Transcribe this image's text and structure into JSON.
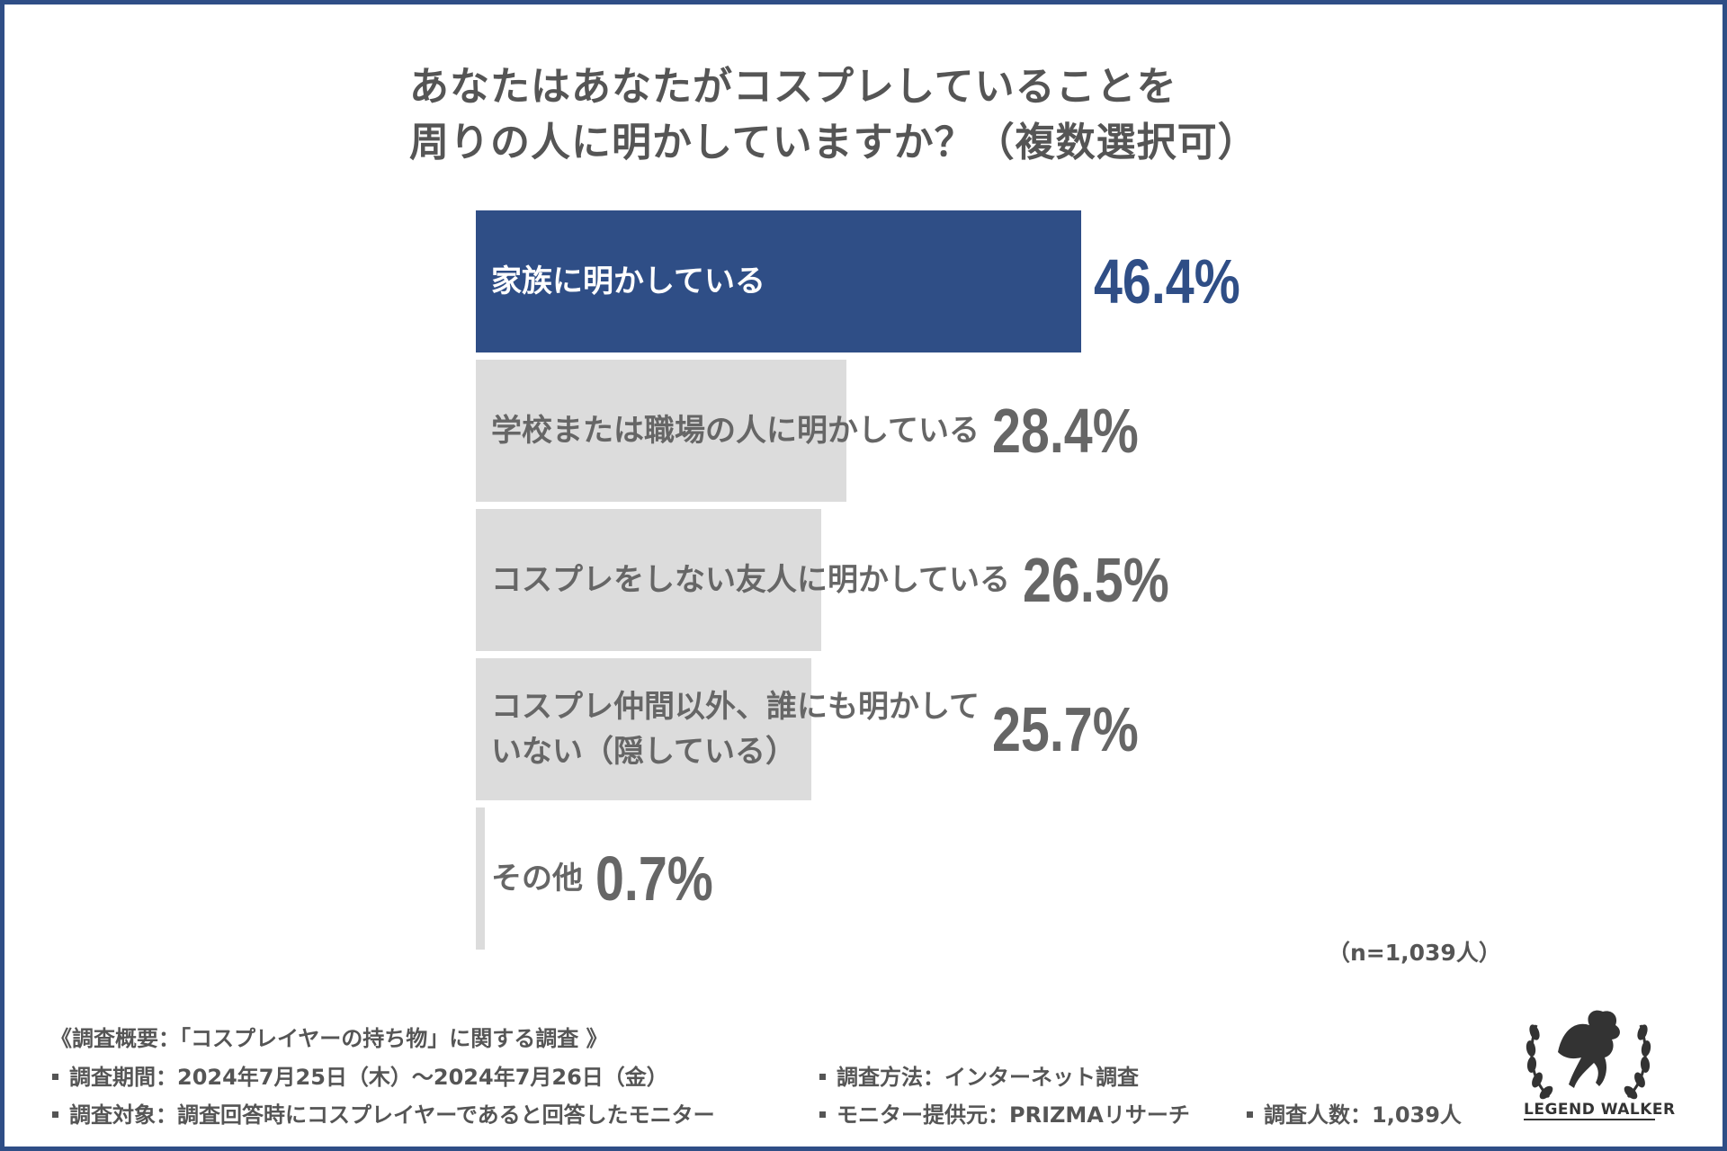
{
  "title": {
    "line1": "あなたはあなたがコスプレしていることを",
    "line2": "周りの人に明かしていますか？（複数選択可）"
  },
  "chart_data": {
    "type": "bar",
    "orientation": "horizontal",
    "title": "あなたはあなたがコスプレしていることを周りの人に明かしていますか？（複数選択可）",
    "categories": [
      "家族に明かしている",
      "学校または職場の人に明かしている",
      "コスプレをしない友人に明かしている",
      "コスプレ仲間以外、誰にも明かしていない（隠している）",
      "その他"
    ],
    "category_lines": [
      [
        "家族に明かしている"
      ],
      [
        "学校または職場の人に明かしている"
      ],
      [
        "コスプレをしない友人に明かしている"
      ],
      [
        "コスプレ仲間以外、誰にも明かして",
        "いない（隠している）"
      ],
      [
        "その他"
      ]
    ],
    "values": [
      46.4,
      28.4,
      26.5,
      25.7,
      0.7
    ],
    "value_labels": [
      "46.4%",
      "28.4%",
      "26.5%",
      "25.7%",
      "0.7%"
    ],
    "unit": "%",
    "highlight_index": 0,
    "xlim": [
      0,
      100
    ],
    "grid": false,
    "legend": "none"
  },
  "colors": {
    "highlight": "#2f4e86",
    "bar": "#dcdcdc",
    "text": "#555555",
    "frame": "#2f4e86"
  },
  "sample_note": "（n=1,039人）",
  "footer": {
    "heading": "《調査概要：「コスプレイヤーの持ち物」に関する調査 》",
    "period": "調査期間：2024年7月25日（木）～2024年7月26日（金）",
    "method": "調査方法：インターネット調査",
    "target": "調査対象：調査回答時にコスプレイヤーであると回答したモニター",
    "provider": "モニター提供元：PRIZMAリサーチ",
    "count": "調査人数：1,039人"
  },
  "logo": {
    "icon": "pegasus-laurel-icon",
    "text": "LEGEND WALKER"
  }
}
